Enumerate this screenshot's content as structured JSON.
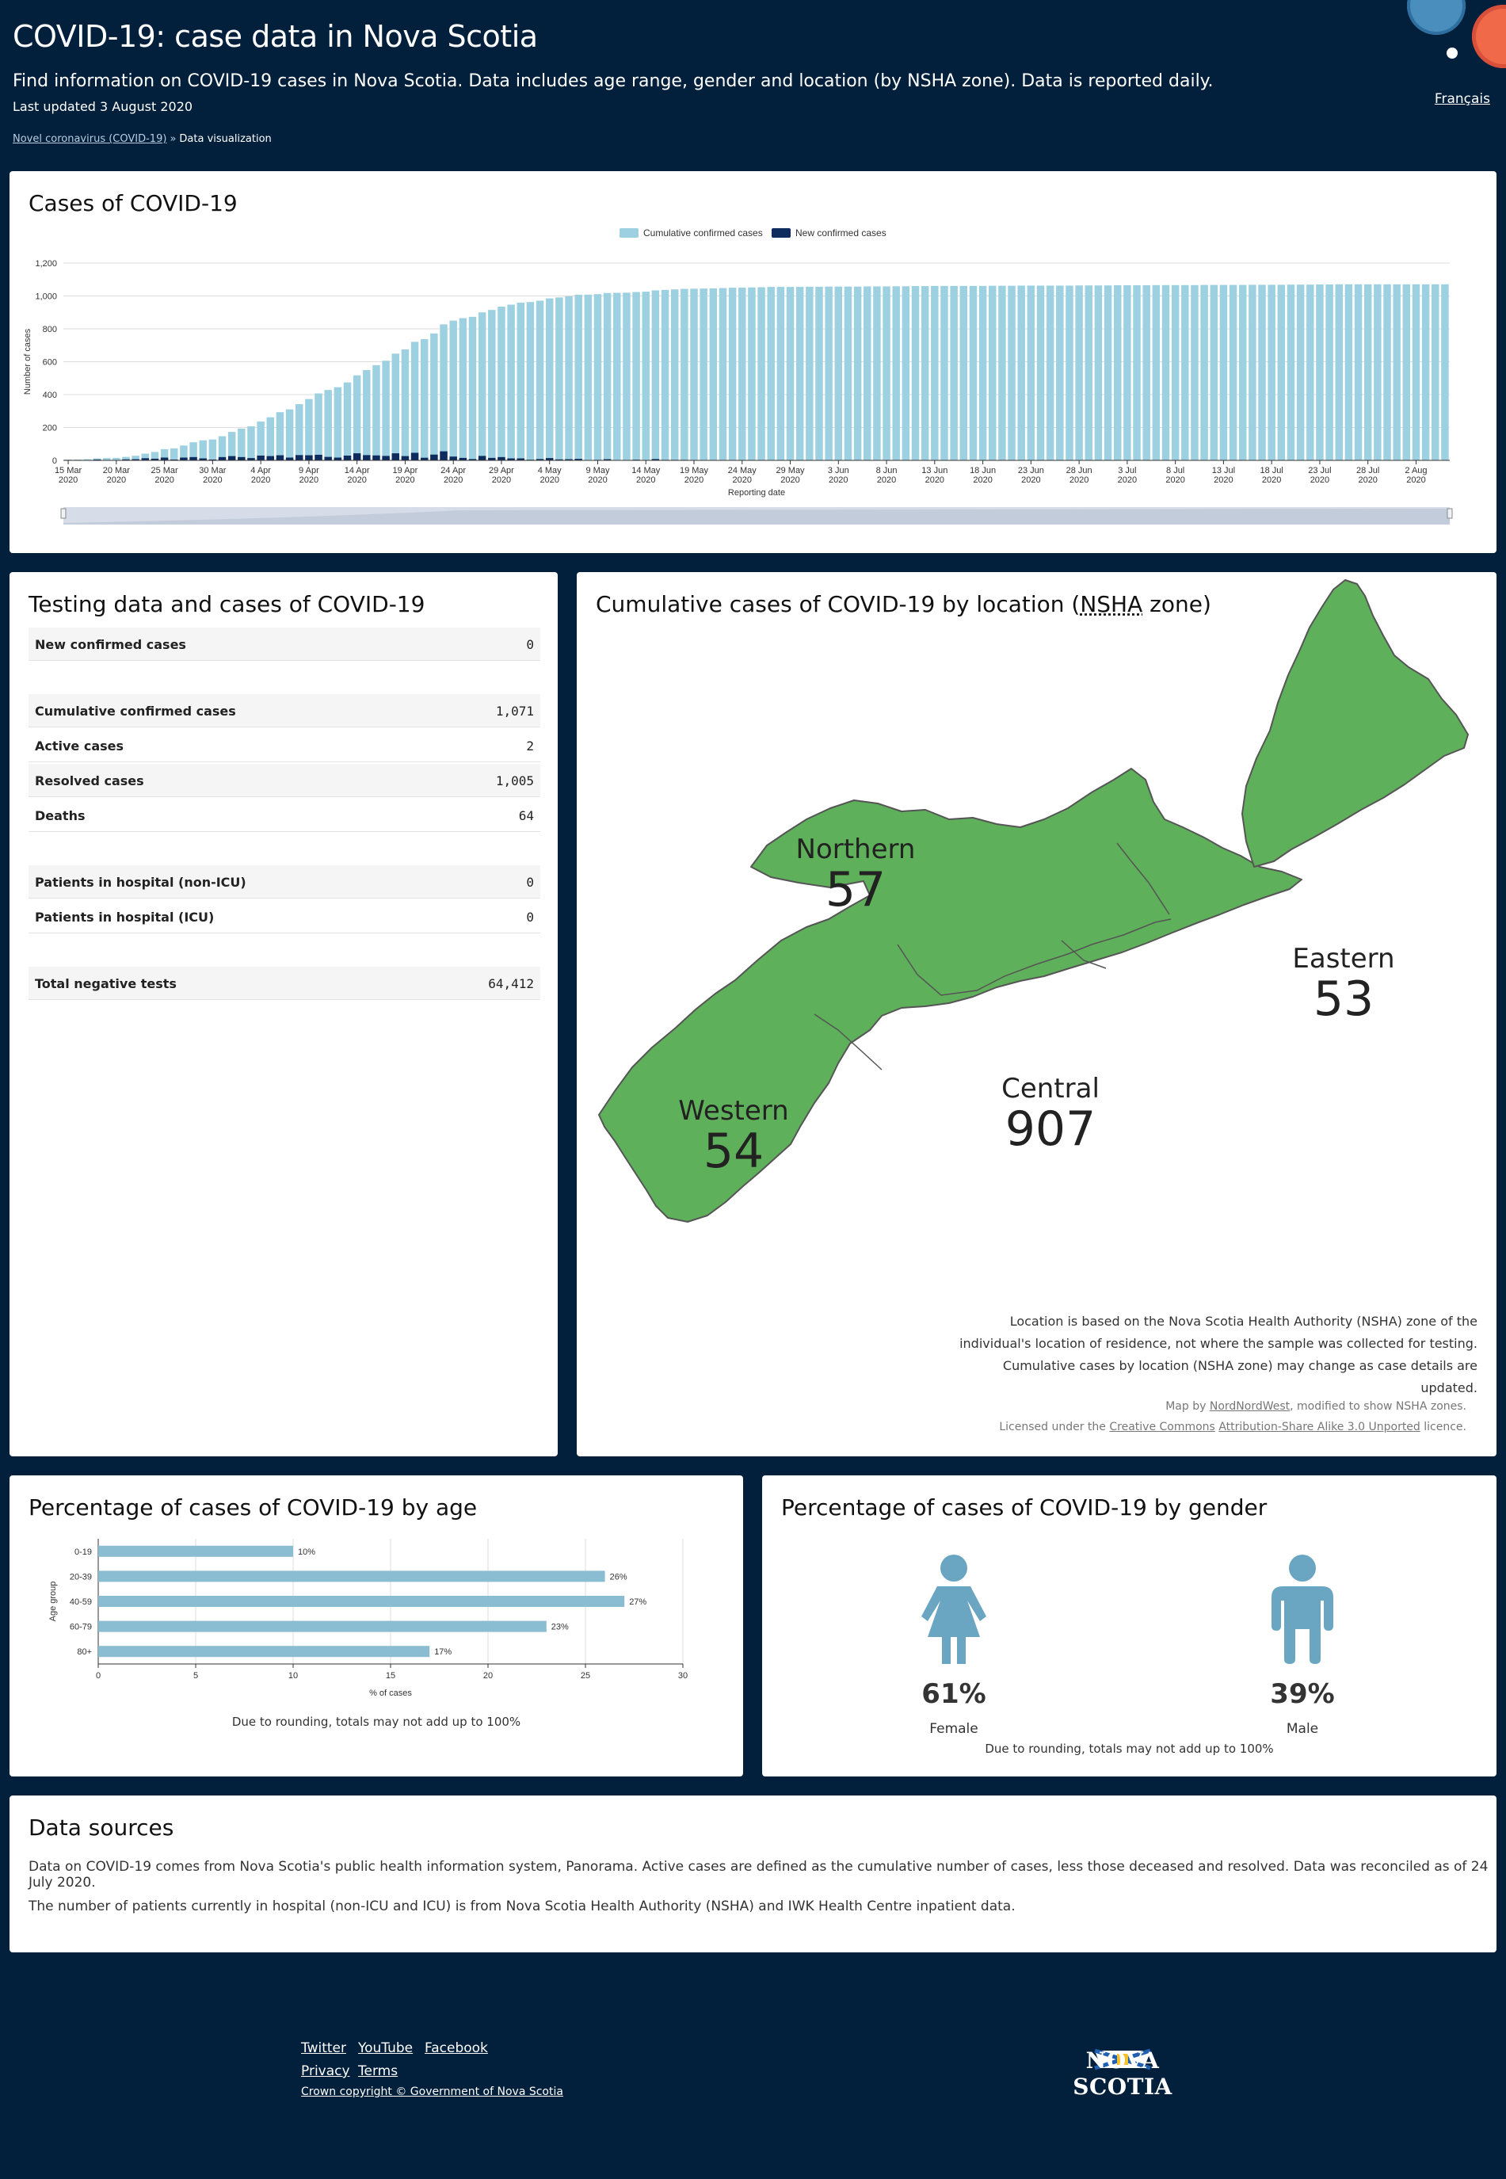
{
  "header": {
    "title": "COVID-19: case data in Nova Scotia",
    "subtitle": "Find information on COVID-19 cases in Nova Scotia. Data includes age range, gender and location (by NSHA zone). Data is reported daily.",
    "last_updated": "Last updated 3 August 2020",
    "breadcrumb": {
      "parent": "Novel coronavirus (COVID-19)",
      "separator": "»",
      "current": "Data visualization"
    },
    "language_link": "Français"
  },
  "cases_card": {
    "title": "Cases of COVID-19"
  },
  "testing": {
    "title": "Testing data and cases of COVID-19",
    "groups": [
      [
        {
          "label": "New confirmed cases",
          "value": "0"
        }
      ],
      [
        {
          "label": "Cumulative confirmed cases",
          "value": "1,071"
        },
        {
          "label": "Active cases",
          "value": "2"
        },
        {
          "label": "Resolved cases",
          "value": "1,005"
        },
        {
          "label": "Deaths",
          "value": "64"
        }
      ],
      [
        {
          "label": "Patients in hospital (non-ICU)",
          "value": "0"
        },
        {
          "label": "Patients in hospital (ICU)",
          "value": "0"
        }
      ],
      [
        {
          "label": "Total negative tests",
          "value": "64,412"
        }
      ]
    ]
  },
  "map": {
    "title_prefix": "Cumulative cases of COVID-19 by location (",
    "title_abbr": "NSHA",
    "title_suffix": " zone)",
    "zones": {
      "northern": {
        "name": "Northern",
        "value": "57"
      },
      "eastern": {
        "name": "Eastern",
        "value": "53"
      },
      "central": {
        "name": "Central",
        "value": "907"
      },
      "western": {
        "name": "Western",
        "value": "54"
      }
    },
    "fill_color": "#5fb05a",
    "note": "Location is based on the Nova Scotia Health Authority (NSHA) zone of the individual's location of residence, not where the sample was collected for testing. Cumulative cases by location (NSHA zone) may change as case details are updated.",
    "credit_prefix": "Map by ",
    "credit_author": "NordNordWest",
    "credit_suffix": ", modified to show NSHA zones.",
    "licence_prefix": "Licensed under the ",
    "licence_cc": "Creative Commons",
    "licence_name": "Attribution-Share Alike 3.0 Unported",
    "licence_suffix": " licence."
  },
  "age_card": {
    "title": "Percentage of cases of COVID-19 by age",
    "rounding_note": "Due to rounding, totals may not add up to 100%"
  },
  "gender_card": {
    "title": "Percentage of cases of COVID-19 by gender",
    "female": {
      "pct": "61%",
      "label": "Female"
    },
    "male": {
      "pct": "39%",
      "label": "Male"
    },
    "rounding_note": "Due to rounding, totals may not add up to 100%",
    "icon_color": "#6aa6c2"
  },
  "sources": {
    "title": "Data sources",
    "p1": "Data on COVID-19 comes from Nova Scotia's public health information system, Panorama. Active cases are defined as the cumulative number of cases, less those deceased and resolved. Data was reconciled as of 24 July 2020.",
    "p2": "The number of patients currently in hospital (non-ICU and ICU) is from Nova Scotia Health Authority (NSHA) and IWK Health Centre inpatient data."
  },
  "footer": {
    "links": [
      "Twitter",
      "YouTube",
      "Facebook",
      "Privacy",
      "Terms"
    ],
    "copyright": "Crown copyright © Government of Nova Scotia",
    "logo_text": "NOVA SCOTIA"
  },
  "colors": {
    "background": "#02203c",
    "cumulative": "#9dd1e1",
    "new": "#0e2d5e",
    "age_bar": "#8bbdd2"
  },
  "chart_data": [
    {
      "type": "bar",
      "title": "",
      "xlabel": "Reporting date",
      "ylabel": "Number of cases",
      "ylim": [
        0,
        1200
      ],
      "yticks": [
        "0",
        "200",
        "400",
        "600",
        "800",
        "1,000",
        "1,200"
      ],
      "x_start": "2020-03-15",
      "x_end": "2020-08-02",
      "x_ticks": [
        "15 Mar 2020",
        "20 Mar 2020",
        "25 Mar 2020",
        "30 Mar 2020",
        "4 Apr 2020",
        "9 Apr 2020",
        "14 Apr 2020",
        "19 Apr 2020",
        "24 Apr 2020",
        "29 Apr 2020",
        "4 May 2020",
        "9 May 2020",
        "14 May 2020",
        "19 May 2020",
        "24 May 2020",
        "29 May 2020",
        "3 Jun 2020",
        "8 Jun 2020",
        "13 Jun 2020",
        "18 Jun 2020",
        "23 Jun 2020",
        "28 Jun 2020",
        "3 Jul 2020",
        "8 Jul 2020",
        "13 Jul 2020",
        "18 Jul 2020",
        "23 Jul 2020",
        "28 Jul 2020",
        "2 Aug 2020"
      ],
      "legend_position": "top",
      "series": [
        {
          "name": "Cumulative confirmed cases",
          "values": [
            3,
            5,
            7,
            12,
            14,
            15,
            21,
            28,
            41,
            51,
            68,
            73,
            90,
            110,
            122,
            127,
            147,
            173,
            193,
            207,
            236,
            262,
            293,
            310,
            342,
            373,
            407,
            428,
            445,
            474,
            517,
            549,
            579,
            606,
            649,
            675,
            721,
            737,
            772,
            827,
            850,
            865,
            873,
            900,
            915,
            935,
            947,
            959,
            963,
            971,
            985,
            991,
            998,
            1007,
            1008,
            1011,
            1018,
            1019,
            1020,
            1024,
            1026,
            1034,
            1037,
            1040,
            1043,
            1044,
            1045,
            1046,
            1048,
            1050,
            1051,
            1052,
            1053,
            1055,
            1055,
            1055,
            1055,
            1056,
            1056,
            1057,
            1057,
            1057,
            1057,
            1058,
            1058,
            1058,
            1059,
            1059,
            1060,
            1060,
            1061,
            1061,
            1061,
            1061,
            1061,
            1061,
            1062,
            1062,
            1062,
            1063,
            1063,
            1063,
            1063,
            1063,
            1063,
            1064,
            1064,
            1064,
            1064,
            1065,
            1065,
            1065,
            1065,
            1066,
            1066,
            1066,
            1066,
            1066,
            1067,
            1067,
            1067,
            1067,
            1067,
            1068,
            1068,
            1068,
            1068,
            1069,
            1069,
            1069,
            1070,
            1070,
            1071,
            1071,
            1071,
            1071,
            1071,
            1071,
            1071,
            1071,
            1071,
            1071,
            1071,
            1071
          ]
        },
        {
          "name": "New confirmed cases",
          "values": [
            3,
            2,
            2,
            5,
            2,
            1,
            6,
            7,
            13,
            10,
            17,
            5,
            17,
            20,
            12,
            5,
            20,
            26,
            20,
            14,
            29,
            26,
            31,
            17,
            32,
            31,
            34,
            21,
            17,
            29,
            43,
            32,
            30,
            27,
            43,
            26,
            46,
            16,
            35,
            55,
            23,
            15,
            8,
            27,
            15,
            20,
            12,
            12,
            4,
            8,
            14,
            6,
            7,
            9,
            1,
            3,
            7,
            1,
            1,
            4,
            2,
            8,
            3,
            3,
            3,
            1,
            1,
            1,
            2,
            2,
            1,
            1,
            1,
            2,
            0,
            0,
            0,
            1,
            0,
            1,
            0,
            0,
            0,
            1,
            0,
            0,
            1,
            0,
            1,
            0,
            1,
            0,
            0,
            0,
            0,
            0,
            1,
            0,
            0,
            1,
            0,
            0,
            0,
            0,
            0,
            1,
            0,
            0,
            0,
            1,
            0,
            0,
            0,
            1,
            0,
            0,
            0,
            0,
            1,
            0,
            0,
            0,
            0,
            1,
            0,
            0,
            0,
            1,
            0,
            0,
            1,
            0,
            1,
            0,
            0,
            0,
            0,
            0,
            0,
            0,
            0,
            0,
            0,
            0
          ]
        }
      ]
    },
    {
      "type": "bar",
      "orientation": "horizontal",
      "title": "",
      "xlabel": "% of cases",
      "ylabel": "Age group",
      "xlim": [
        0,
        30
      ],
      "xticks": [
        "0",
        "5",
        "10",
        "15",
        "20",
        "25",
        "30"
      ],
      "categories": [
        "0-19",
        "20-39",
        "40-59",
        "60-79",
        "80+"
      ],
      "values": [
        10,
        26,
        27,
        23,
        17
      ],
      "data_labels": [
        "10%",
        "26%",
        "27%",
        "23%",
        "17%"
      ]
    }
  ]
}
